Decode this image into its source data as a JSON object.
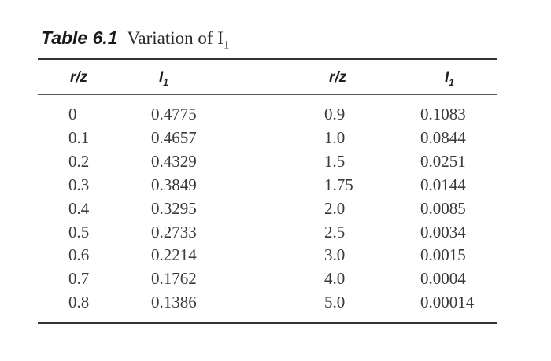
{
  "title": {
    "label": "Table 6.1",
    "text": "Variation of I",
    "subscript": "1"
  },
  "headers": {
    "rz_left": "r/z",
    "i1_left": "I",
    "rz_right": "r/z",
    "i1_right": "I",
    "subscript": "1"
  },
  "rows_left": [
    {
      "rz": "0",
      "i1": "0.4775"
    },
    {
      "rz": "0.1",
      "i1": "0.4657"
    },
    {
      "rz": "0.2",
      "i1": "0.4329"
    },
    {
      "rz": "0.3",
      "i1": "0.3849"
    },
    {
      "rz": "0.4",
      "i1": "0.3295"
    },
    {
      "rz": "0.5",
      "i1": "0.2733"
    },
    {
      "rz": "0.6",
      "i1": "0.2214"
    },
    {
      "rz": "0.7",
      "i1": "0.1762"
    },
    {
      "rz": "0.8",
      "i1": "0.1386"
    }
  ],
  "rows_right": [
    {
      "rz": "0.9",
      "i1": "0.1083"
    },
    {
      "rz": "1.0",
      "i1": "0.0844"
    },
    {
      "rz": "1.5",
      "i1": "0.0251"
    },
    {
      "rz": "1.75",
      "i1": "0.0144"
    },
    {
      "rz": "2.0",
      "i1": "0.0085"
    },
    {
      "rz": "2.5",
      "i1": "0.0034"
    },
    {
      "rz": "3.0",
      "i1": "0.0015"
    },
    {
      "rz": "4.0",
      "i1": "0.0004"
    },
    {
      "rz": "5.0",
      "i1": "0.00014"
    }
  ]
}
